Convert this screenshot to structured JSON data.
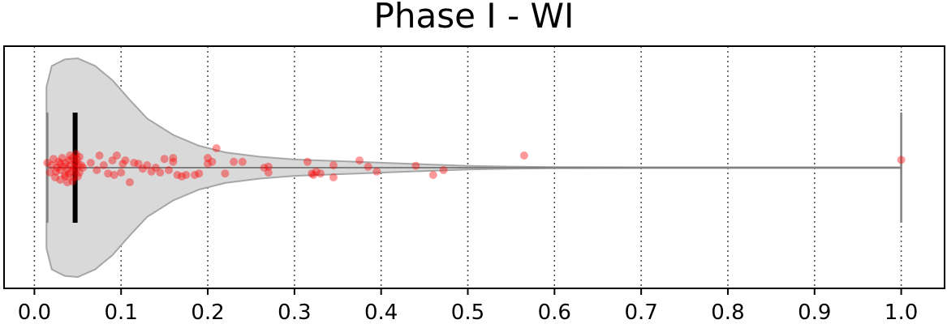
{
  "chart_data": {
    "type": "violin",
    "title": "Phase I - WI",
    "xlabel": "",
    "ylabel": "",
    "xlim": [
      -0.035,
      1.05
    ],
    "xticks": [
      0.0,
      0.1,
      0.2,
      0.3,
      0.4,
      0.5,
      0.6,
      0.7,
      0.8,
      0.9,
      1.0
    ],
    "xtick_labels": [
      "0.0",
      "0.1",
      "0.2",
      "0.3",
      "0.4",
      "0.5",
      "0.6",
      "0.7",
      "0.8",
      "0.9",
      "1.0"
    ],
    "grid": "vertical-dotted",
    "colors": {
      "violin_fill": "#d9d9d9",
      "violin_edge": "#a6a6a6",
      "whisker": "#808080",
      "iqr_bar": "#000000",
      "points": "#ff0000"
    },
    "summary": {
      "min": 0.015,
      "q1": 0.045,
      "median": 0.047,
      "q3": 0.05,
      "max": 1.0
    },
    "density_profile": [
      [
        0.014,
        0.74
      ],
      [
        0.02,
        0.93
      ],
      [
        0.035,
        0.99
      ],
      [
        0.05,
        1.0
      ],
      [
        0.07,
        0.93
      ],
      [
        0.09,
        0.8
      ],
      [
        0.11,
        0.62
      ],
      [
        0.13,
        0.45
      ],
      [
        0.16,
        0.3
      ],
      [
        0.19,
        0.2
      ],
      [
        0.22,
        0.14
      ],
      [
        0.26,
        0.1
      ],
      [
        0.3,
        0.075
      ],
      [
        0.35,
        0.06
      ],
      [
        0.4,
        0.045
      ],
      [
        0.45,
        0.03
      ],
      [
        0.5,
        0.017
      ],
      [
        0.55,
        0.01
      ],
      [
        0.6,
        0.006
      ],
      [
        0.7,
        0.004
      ],
      [
        0.8,
        0.004
      ],
      [
        0.9,
        0.004
      ],
      [
        1.0,
        0.004
      ]
    ],
    "points": [
      [
        0.015,
        0.1
      ],
      [
        0.018,
        -0.1
      ],
      [
        0.02,
        0.05
      ],
      [
        0.022,
        0.18
      ],
      [
        0.024,
        -0.2
      ],
      [
        0.026,
        0.0
      ],
      [
        0.028,
        0.12
      ],
      [
        0.03,
        -0.05
      ],
      [
        0.03,
        -0.25
      ],
      [
        0.032,
        0.2
      ],
      [
        0.034,
        0.02
      ],
      [
        0.035,
        -0.15
      ],
      [
        0.036,
        0.1
      ],
      [
        0.038,
        -0.02
      ],
      [
        0.04,
        0.15
      ],
      [
        0.04,
        -0.12
      ],
      [
        0.042,
        0.05
      ],
      [
        0.043,
        -0.08
      ],
      [
        0.044,
        0.2
      ],
      [
        0.045,
        -0.2
      ],
      [
        0.046,
        0.0
      ],
      [
        0.047,
        0.1
      ],
      [
        0.048,
        -0.05
      ],
      [
        0.049,
        0.18
      ],
      [
        0.05,
        -0.18
      ],
      [
        0.05,
        0.08
      ],
      [
        0.052,
        -0.1
      ],
      [
        0.054,
        0.05
      ],
      [
        0.036,
        -0.18
      ],
      [
        0.03,
        0.08
      ],
      [
        0.025,
        -0.08
      ],
      [
        0.041,
        0.25
      ],
      [
        0.044,
        -0.28
      ],
      [
        0.052,
        0.22
      ],
      [
        0.038,
        -0.3
      ],
      [
        0.048,
        0.28
      ],
      [
        0.056,
        0.0
      ],
      [
        0.065,
        0.1
      ],
      [
        0.072,
        -0.05
      ],
      [
        0.075,
        0.25
      ],
      [
        0.08,
        0.05
      ],
      [
        0.085,
        -0.12
      ],
      [
        0.09,
        0.15
      ],
      [
        0.092,
        -0.15
      ],
      [
        0.095,
        0.25
      ],
      [
        0.1,
        -0.1
      ],
      [
        0.102,
        0.08
      ],
      [
        0.105,
        0.15
      ],
      [
        0.11,
        -0.3
      ],
      [
        0.115,
        0.1
      ],
      [
        0.12,
        0.08
      ],
      [
        0.125,
        -0.02
      ],
      [
        0.13,
        0.05
      ],
      [
        0.135,
        -0.08
      ],
      [
        0.14,
        0.0
      ],
      [
        0.145,
        -0.1
      ],
      [
        0.15,
        0.18
      ],
      [
        0.155,
        -0.05
      ],
      [
        0.16,
        0.2
      ],
      [
        0.16,
        0.12
      ],
      [
        0.165,
        -0.15
      ],
      [
        0.17,
        -0.18
      ],
      [
        0.175,
        -0.15
      ],
      [
        0.185,
        -0.15
      ],
      [
        0.19,
        -0.12
      ],
      [
        0.2,
        0.08
      ],
      [
        0.2,
        0.2
      ],
      [
        0.205,
        0.12
      ],
      [
        0.21,
        0.4
      ],
      [
        0.22,
        -0.12
      ],
      [
        0.23,
        0.12
      ],
      [
        0.24,
        0.12
      ],
      [
        0.265,
        0.0
      ],
      [
        0.27,
        -0.1
      ],
      [
        0.27,
        0.02
      ],
      [
        0.315,
        0.12
      ],
      [
        0.32,
        -0.12
      ],
      [
        0.322,
        -0.15
      ],
      [
        0.325,
        -0.08
      ],
      [
        0.33,
        -0.12
      ],
      [
        0.345,
        0.05
      ],
      [
        0.345,
        -0.2
      ],
      [
        0.375,
        0.15
      ],
      [
        0.385,
        0.02
      ],
      [
        0.395,
        -0.08
      ],
      [
        0.44,
        0.04
      ],
      [
        0.46,
        -0.15
      ],
      [
        0.472,
        -0.05
      ],
      [
        0.565,
        0.25
      ],
      [
        1.0,
        0.16
      ]
    ]
  }
}
